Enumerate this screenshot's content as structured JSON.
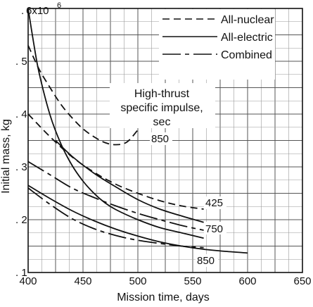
{
  "chart_data": {
    "type": "line",
    "title": "",
    "xlabel": "Mission time, days",
    "ylabel": "Initial mass, kg",
    "xlim": [
      400,
      650
    ],
    "ylim": [
      0.1,
      0.6
    ],
    "y_multiplier_label": "6x10",
    "y_multiplier_exp": "6",
    "x_ticks": [
      {
        "v": 400,
        "label": "400"
      },
      {
        "v": 450,
        "label": "450"
      },
      {
        "v": 500,
        "label": "500"
      },
      {
        "v": 550,
        "label": "550"
      },
      {
        "v": 600,
        "label": "600"
      },
      {
        "v": 650,
        "label": "650"
      }
    ],
    "y_ticks": [
      {
        "v": 0.1,
        "label": ". 1"
      },
      {
        "v": 0.2,
        "label": ". 2"
      },
      {
        "v": 0.3,
        "label": ". 3"
      },
      {
        "v": 0.4,
        "label": ". 4"
      },
      {
        "v": 0.5,
        "label": ". 5"
      },
      {
        "v": 0.6,
        "label": ". "
      }
    ],
    "grid": true,
    "legend_position": "top-right",
    "legend": [
      {
        "name": "All-nuclear",
        "style": "dashed"
      },
      {
        "name": "All-electric",
        "style": "solid"
      },
      {
        "name": "Combined",
        "style": "long-dash"
      }
    ],
    "legend_title": [
      "High-thrust",
      "specific impulse,",
      "sec"
    ],
    "series": [
      {
        "name": "All-nuclear",
        "style": "dashed",
        "annotation": "850",
        "x": [
          400,
          410,
          420,
          430,
          440,
          450,
          460,
          470,
          480,
          490,
          500
        ],
        "y": [
          0.53,
          0.485,
          0.45,
          0.418,
          0.393,
          0.372,
          0.357,
          0.346,
          0.342,
          0.347,
          0.37
        ]
      },
      {
        "name": "All-nuclear",
        "style": "dashed",
        "annotation": "425",
        "x": [
          400,
          420,
          440,
          460,
          480,
          500,
          520,
          540,
          560
        ],
        "y": [
          0.4,
          0.357,
          0.319,
          0.29,
          0.267,
          0.25,
          0.236,
          0.226,
          0.22
        ]
      },
      {
        "name": "All-electric",
        "style": "solid",
        "x": [
          400,
          405,
          410,
          420,
          430,
          440,
          450,
          460,
          470,
          480,
          500,
          520,
          540,
          560
        ],
        "y": [
          0.6,
          0.535,
          0.478,
          0.398,
          0.343,
          0.303,
          0.273,
          0.25,
          0.232,
          0.219,
          0.2,
          0.185,
          0.175,
          0.165
        ]
      },
      {
        "name": "All-electric",
        "style": "solid",
        "annotation": "750",
        "x": [
          425,
          440,
          460,
          480,
          500,
          520,
          540,
          560
        ],
        "y": [
          0.35,
          0.32,
          0.288,
          0.262,
          0.238,
          0.22,
          0.207,
          0.195
        ]
      },
      {
        "name": "All-electric",
        "style": "solid",
        "annotation": "850",
        "x": [
          400,
          420,
          440,
          460,
          480,
          500,
          520,
          540,
          560,
          580,
          600
        ],
        "y": [
          0.265,
          0.24,
          0.217,
          0.198,
          0.182,
          0.169,
          0.158,
          0.15,
          0.144,
          0.14,
          0.137
        ]
      },
      {
        "name": "Combined",
        "style": "long-dash",
        "x": [
          400,
          420,
          440,
          460,
          480,
          500,
          520,
          540,
          560
        ],
        "y": [
          0.31,
          0.285,
          0.26,
          0.242,
          0.226,
          0.212,
          0.2,
          0.189,
          0.18
        ]
      },
      {
        "name": "Combined",
        "style": "long-dash",
        "x": [
          400,
          420,
          440,
          460,
          480,
          500,
          520,
          540,
          560
        ],
        "y": [
          0.26,
          0.229,
          0.202,
          0.183,
          0.17,
          0.161,
          0.155,
          0.15,
          0.147
        ]
      }
    ],
    "annotations": [
      "850",
      "425",
      "750",
      "850"
    ]
  }
}
